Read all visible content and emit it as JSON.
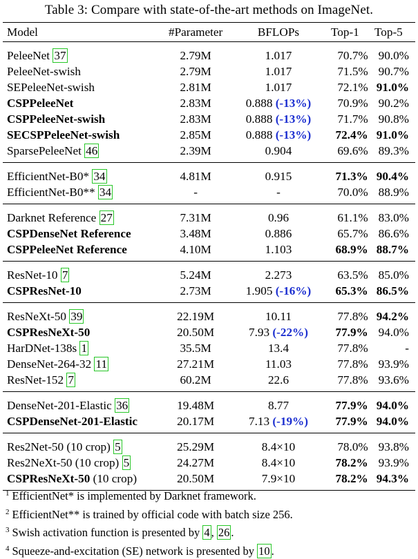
{
  "caption": "Table 3: Compare with state-of-the-art methods on ImageNet.",
  "columns": [
    "Model",
    "#Parameter",
    "BFLOPs",
    "Top-1",
    "Top-5"
  ],
  "groups": [
    {
      "rows": [
        {
          "model": "PeleeNet",
          "cite": "37",
          "model_bold": false,
          "params": "2.79M",
          "flops": "1.017",
          "delta": "",
          "top1": "70.7%",
          "top1_bold": false,
          "top5": "90.0%",
          "top5_bold": false
        },
        {
          "model": "PeleeNet-swish",
          "cite": "",
          "model_bold": false,
          "params": "2.79M",
          "flops": "1.017",
          "delta": "",
          "top1": "71.5%",
          "top1_bold": false,
          "top5": "90.7%",
          "top5_bold": false
        },
        {
          "model": "SEPeleeNet-swish",
          "cite": "",
          "model_bold": false,
          "params": "2.81M",
          "flops": "1.017",
          "delta": "",
          "top1": "72.1%",
          "top1_bold": false,
          "top5": "91.0%",
          "top5_bold": true
        },
        {
          "model": "CSPPeleeNet",
          "cite": "",
          "model_bold": true,
          "params": "2.83M",
          "flops": "0.888",
          "delta": "(-13%)",
          "top1": "70.9%",
          "top1_bold": false,
          "top5": "90.2%",
          "top5_bold": false
        },
        {
          "model": "CSPPeleeNet-swish",
          "cite": "",
          "model_bold": true,
          "params": "2.83M",
          "flops": "0.888",
          "delta": "(-13%)",
          "top1": "71.7%",
          "top1_bold": false,
          "top5": "90.8%",
          "top5_bold": false
        },
        {
          "model": "SECSPPeleeNet-swish",
          "cite": "",
          "model_bold": true,
          "params": "2.85M",
          "flops": "0.888",
          "delta": "(-13%)",
          "top1": "72.4%",
          "top1_bold": true,
          "top5": "91.0%",
          "top5_bold": true
        },
        {
          "model": "SparsePeleeNet",
          "cite": "46",
          "model_bold": false,
          "params": "2.39M",
          "flops": "0.904",
          "delta": "",
          "top1": "69.6%",
          "top1_bold": false,
          "top5": "89.3%",
          "top5_bold": false
        }
      ]
    },
    {
      "rows": [
        {
          "model": "EfficientNet-B0*",
          "cite": "34",
          "model_bold": false,
          "params": "4.81M",
          "flops": "0.915",
          "delta": "",
          "top1": "71.3%",
          "top1_bold": true,
          "top5": "90.4%",
          "top5_bold": true
        },
        {
          "model": "EfficientNet-B0**",
          "cite": "34",
          "model_bold": false,
          "params": "-",
          "flops": "-",
          "delta": "",
          "top1": "70.0%",
          "top1_bold": false,
          "top5": "88.9%",
          "top5_bold": false
        }
      ]
    },
    {
      "rows": [
        {
          "model": "Darknet Reference",
          "cite": "27",
          "model_bold": false,
          "params": "7.31M",
          "flops": "0.96",
          "delta": "",
          "top1": "61.1%",
          "top1_bold": false,
          "top5": "83.0%",
          "top5_bold": false
        },
        {
          "model": "CSPDenseNet Reference",
          "cite": "",
          "model_bold": true,
          "params": "3.48M",
          "flops": "0.886",
          "delta": "",
          "top1": "65.7%",
          "top1_bold": false,
          "top5": "86.6%",
          "top5_bold": false
        },
        {
          "model": "CSPPeleeNet Reference",
          "cite": "",
          "model_bold": true,
          "params": "4.10M",
          "flops": "1.103",
          "delta": "",
          "top1": "68.9%",
          "top1_bold": true,
          "top5": "88.7%",
          "top5_bold": true
        }
      ]
    },
    {
      "rows": [
        {
          "model": "ResNet-10",
          "cite": "7",
          "model_bold": false,
          "params": "5.24M",
          "flops": "2.273",
          "delta": "",
          "top1": "63.5%",
          "top1_bold": false,
          "top5": "85.0%",
          "top5_bold": false
        },
        {
          "model": "CSPResNet-10",
          "cite": "",
          "model_bold": true,
          "params": "2.73M",
          "flops": "1.905",
          "delta": "(-16%)",
          "top1": "65.3%",
          "top1_bold": true,
          "top5": "86.5%",
          "top5_bold": true
        }
      ]
    },
    {
      "rows": [
        {
          "model": "ResNeXt-50",
          "cite": "39",
          "model_bold": false,
          "params": "22.19M",
          "flops": "10.11",
          "delta": "",
          "top1": "77.8%",
          "top1_bold": false,
          "top5": "94.2%",
          "top5_bold": true
        },
        {
          "model": "CSPResNeXt-50",
          "cite": "",
          "model_bold": true,
          "params": "20.50M",
          "flops": "7.93",
          "delta": "(-22%)",
          "top1": "77.9%",
          "top1_bold": true,
          "top5": "94.0%",
          "top5_bold": false
        },
        {
          "model": "HarDNet-138s",
          "cite": "1",
          "model_bold": false,
          "params": "35.5M",
          "flops": "13.4",
          "delta": "",
          "top1": "77.8%",
          "top1_bold": false,
          "top5": "-",
          "top5_bold": false
        },
        {
          "model": "DenseNet-264-32",
          "cite": "11",
          "model_bold": false,
          "params": "27.21M",
          "flops": "11.03",
          "delta": "",
          "top1": "77.8%",
          "top1_bold": false,
          "top5": "93.9%",
          "top5_bold": false
        },
        {
          "model": "ResNet-152",
          "cite": "7",
          "model_bold": false,
          "params": "60.2M",
          "flops": "22.6",
          "delta": "",
          "top1": "77.8%",
          "top1_bold": false,
          "top5": "93.6%",
          "top5_bold": false
        }
      ]
    },
    {
      "rows": [
        {
          "model": "DenseNet-201-Elastic",
          "cite": "36",
          "model_bold": false,
          "params": "19.48M",
          "flops": "8.77",
          "delta": "",
          "top1": "77.9%",
          "top1_bold": true,
          "top5": "94.0%",
          "top5_bold": true
        },
        {
          "model": "CSPDenseNet-201-Elastic",
          "cite": "",
          "model_bold": true,
          "params": "20.17M",
          "flops": "7.13",
          "delta": "(-19%)",
          "top1": "77.9%",
          "top1_bold": true,
          "top5": "94.0%",
          "top5_bold": true
        }
      ]
    },
    {
      "rows": [
        {
          "model": "Res2Net-50 (10 crop)",
          "cite": "5",
          "model_bold": false,
          "params": "25.29M",
          "flops": "8.4×10",
          "delta": "",
          "top1": "78.0%",
          "top1_bold": false,
          "top5": "93.8%",
          "top5_bold": false
        },
        {
          "model": "Res2NeXt-50 (10 crop)",
          "cite": "5",
          "model_bold": false,
          "params": "24.27M",
          "flops": "8.4×10",
          "delta": "",
          "top1": "78.2%",
          "top1_bold": true,
          "top5": "93.9%",
          "top5_bold": false
        },
        {
          "model": "CSPResNeXt-50",
          "suffix": " (10 crop)",
          "cite": "",
          "model_bold": true,
          "params": "20.50M",
          "flops": "7.9×10",
          "delta": "",
          "top1": "78.2%",
          "top1_bold": true,
          "top5": "94.3%",
          "top5_bold": true
        }
      ]
    }
  ],
  "footnotes": [
    {
      "mark": "1",
      "segments": [
        {
          "t": "EfficientNet* is implemented by Darknet framework."
        }
      ]
    },
    {
      "mark": "2",
      "segments": [
        {
          "t": "EfficientNet** is trained by official code with batch size 256."
        }
      ]
    },
    {
      "mark": "3",
      "segments": [
        {
          "t": "Swish activation function is presented by "
        },
        {
          "cite": "4"
        },
        {
          "t": ", "
        },
        {
          "cite": "26"
        },
        {
          "t": "."
        }
      ]
    },
    {
      "mark": "4",
      "segments": [
        {
          "t": "Squeeze-and-excitation (SE) network is presented by "
        },
        {
          "cite": "10"
        },
        {
          "t": "."
        }
      ]
    }
  ]
}
